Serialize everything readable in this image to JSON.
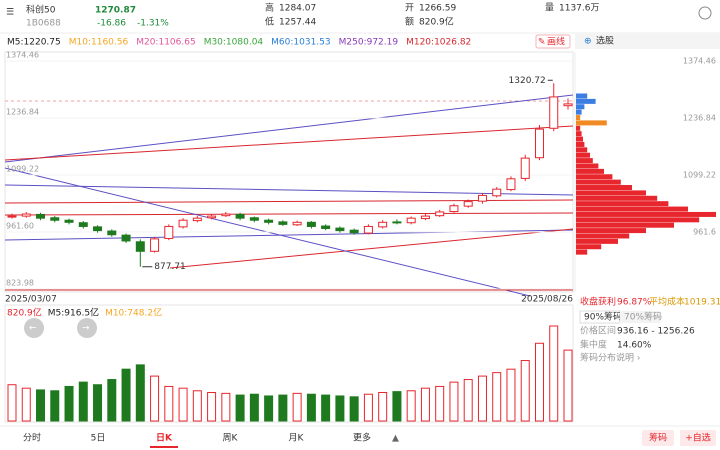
{
  "header": {
    "name": "科创50",
    "code": "1B0688",
    "price": "1270.87",
    "change": "-16.86",
    "change_pct": "-1.31%",
    "high_label": "高",
    "high": "1284.07",
    "low_label": "低",
    "low": "1257.44",
    "open_label": "开",
    "open": "1266.59",
    "amount_label": "额",
    "amount": "820.9亿",
    "volume_label": "量",
    "volume": "1137.6万"
  },
  "ma_legend": [
    {
      "text": "M5:1220.75",
      "color": "#222222"
    },
    {
      "text": "M10:1160.56",
      "color": "#f5a623"
    },
    {
      "text": "M20:1106.65",
      "color": "#e0559b"
    },
    {
      "text": "M30:1080.04",
      "color": "#3aa53a"
    },
    {
      "text": "M60:1031.53",
      "color": "#2a7fd4"
    },
    {
      "text": "M250:972.19",
      "color": "#8a3ab9"
    },
    {
      "text": "M120:1026.82",
      "color": "#d9272e"
    }
  ],
  "buttons": {
    "draw": "画线",
    "pick": "选股"
  },
  "chart_data": [
    {
      "type": "candlestick",
      "categories": [
        "2025/03/07",
        null,
        null,
        null,
        null,
        null,
        null,
        null,
        null,
        null,
        null,
        null,
        null,
        null,
        null,
        null,
        null,
        null,
        null,
        null,
        null,
        null,
        null,
        null,
        null,
        null,
        null,
        null,
        null,
        null,
        null,
        null,
        null,
        null,
        null,
        null,
        null,
        null,
        null,
        "2025/08/26"
      ],
      "open": [
        998,
        1000,
        1004,
        996,
        990,
        984,
        974,
        964,
        954,
        938,
        915,
        946,
        974,
        989,
        996,
        1001,
        1004,
        996,
        990,
        986,
        979,
        985,
        976,
        971,
        966,
        959,
        974,
        986,
        984,
        994,
        1001,
        1011,
        1024,
        1036,
        1049,
        1064,
        1091,
        1141,
        1212,
        1266.59
      ],
      "close": [
        1000,
        1005,
        995,
        990,
        985,
        975,
        965,
        955,
        940,
        915,
        945,
        975,
        990,
        995,
        1000,
        1005,
        995,
        990,
        985,
        980,
        985,
        975,
        970,
        965,
        960,
        975,
        985,
        985,
        995,
        1000,
        1010,
        1025,
        1035,
        1050,
        1065,
        1090,
        1140,
        1210,
        1287.73,
        1270.87
      ],
      "high": [
        1006,
        1010,
        1008,
        1000,
        994,
        988,
        978,
        968,
        958,
        944,
        950,
        980,
        995,
        1000,
        1005,
        1010,
        1008,
        999,
        994,
        990,
        989,
        988,
        980,
        975,
        970,
        980,
        990,
        992,
        999,
        1005,
        1015,
        1030,
        1040,
        1056,
        1070,
        1096,
        1148,
        1220,
        1320.72,
        1284.07
      ],
      "low": [
        994,
        996,
        990,
        985,
        980,
        970,
        960,
        950,
        935,
        877.71,
        912,
        942,
        970,
        985,
        992,
        998,
        990,
        985,
        980,
        976,
        976,
        970,
        966,
        960,
        955,
        956,
        970,
        980,
        980,
        990,
        998,
        1008,
        1020,
        1030,
        1045,
        1060,
        1085,
        1135,
        1205,
        1257.44
      ],
      "up_color": "#e8262d",
      "down_color": "#1f7a1f",
      "ylim": [
        823.98,
        1374.46
      ],
      "yticks": [
        1374.46,
        1236.84,
        1099.22,
        {
          "value": 961.6,
          "label": "961.60"
        },
        823.98
      ]
    },
    {
      "type": "bar",
      "legend": [
        {
          "text": "820.9亿",
          "color": "#e8262d"
        },
        {
          "text": "M5:916.5亿",
          "color": "#222222"
        },
        {
          "text": "M10:748.2亿",
          "color": "#f5a623"
        }
      ],
      "values": [
        420,
        380,
        360,
        350,
        400,
        450,
        420,
        480,
        600,
        650,
        520,
        400,
        380,
        350,
        330,
        320,
        300,
        310,
        290,
        300,
        320,
        310,
        300,
        290,
        280,
        310,
        330,
        340,
        350,
        380,
        400,
        450,
        480,
        520,
        560,
        600,
        700,
        900,
        1100,
        820.9
      ]
    },
    {
      "type": "chip",
      "prices": [
        1290,
        1277,
        1264,
        1251,
        1238,
        1225,
        1212,
        1199,
        1186,
        1173,
        1160,
        1147,
        1134,
        1121,
        1108,
        1095,
        1082,
        1069,
        1056,
        1043,
        1030,
        1017,
        1004,
        991,
        978,
        965,
        952,
        939,
        926,
        913
      ],
      "values": [
        8,
        14,
        6,
        4,
        3,
        22,
        3,
        4,
        5,
        6,
        8,
        10,
        12,
        16,
        20,
        26,
        32,
        40,
        50,
        58,
        66,
        80,
        100,
        88,
        70,
        50,
        38,
        30,
        18,
        8
      ],
      "colors": [
        "#3b7de0",
        "#3b7de0",
        "#3b7de0",
        "#3b7de0",
        "#f08a24",
        "#f08a24",
        "#e8262d",
        "#e8262d",
        "#e8262d",
        "#e8262d",
        "#e8262d",
        "#e8262d",
        "#e8262d",
        "#e8262d",
        "#e8262d",
        "#e8262d",
        "#e8262d",
        "#e8262d",
        "#e8262d",
        "#e8262d",
        "#e8262d",
        "#e8262d",
        "#e8262d",
        "#e8262d",
        "#e8262d",
        "#e8262d",
        "#e8262d",
        "#e8262d",
        "#e8262d",
        "#e8262d"
      ],
      "yticks": [
        1374.46,
        1236.84,
        1099.22,
        961.6
      ]
    }
  ],
  "chip_panel": {
    "profit_label": "收盘获利",
    "profit": "96.87%",
    "avg_label": "平均成本",
    "avg": "1019.31",
    "tab90": "90%筹码",
    "tab70": "70%筹码",
    "range_label": "价格区间",
    "range": "936.16 - 1256.26",
    "conc_label": "集中度",
    "conc": "14.60%",
    "explain": "筹码分布说明 ›"
  },
  "tabs": [
    "分时",
    "5日",
    "日K",
    "周K",
    "月K",
    "更多"
  ],
  "active_tab": 2,
  "actions": [
    "筹码",
    "+自选"
  ]
}
